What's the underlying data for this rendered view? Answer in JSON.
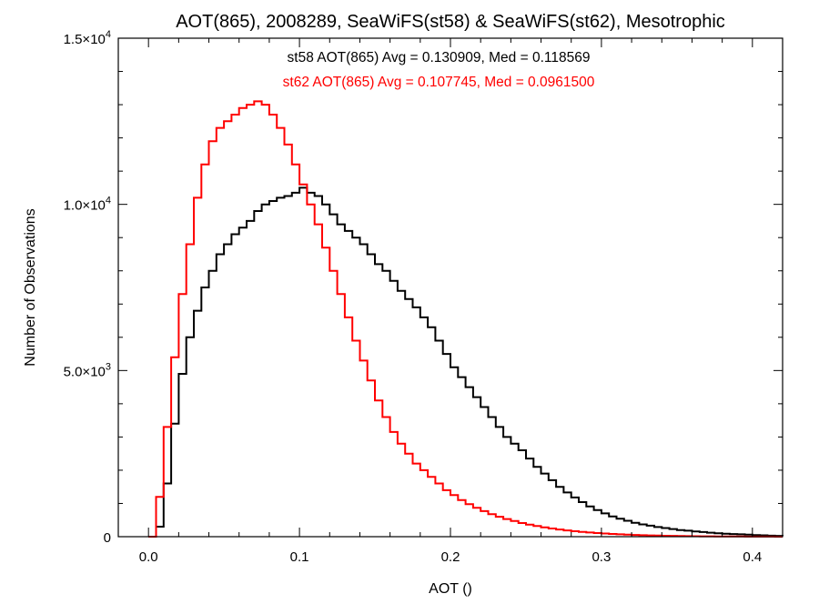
{
  "chart_data": {
    "type": "line",
    "step": true,
    "title": "AOT(865), 2008289, SeaWiFS(st58) & SeaWiFS(st62), Mesotrophic",
    "xlabel": "AOT ()",
    "ylabel": "Number of Observations",
    "xlim": [
      -0.02,
      0.42
    ],
    "ylim": [
      0,
      15000
    ],
    "grid": false,
    "x_ticks": [
      {
        "value": 0.0,
        "label": "0.0"
      },
      {
        "value": 0.1,
        "label": "0.1"
      },
      {
        "value": 0.2,
        "label": "0.2"
      },
      {
        "value": 0.3,
        "label": "0.3"
      },
      {
        "value": 0.4,
        "label": "0.4"
      }
    ],
    "y_ticks": [
      {
        "value": 0,
        "mantissa": "0",
        "exponent": ""
      },
      {
        "value": 5000,
        "mantissa": "5.0×10",
        "exponent": "3"
      },
      {
        "value": 10000,
        "mantissa": "1.0×10",
        "exponent": "4"
      },
      {
        "value": 15000,
        "mantissa": "1.5×10",
        "exponent": "4"
      }
    ],
    "annotations": [
      {
        "text": "st58 AOT(865) Avg = 0.130909, Med = 0.118569",
        "color": "#000000"
      },
      {
        "text": "st62 AOT(865) Avg = 0.107745, Med = 0.0961500",
        "color": "#ff0000"
      }
    ],
    "series": [
      {
        "color": "#000000",
        "x": [
          0.0,
          0.005,
          0.01,
          0.015,
          0.02,
          0.025,
          0.03,
          0.035,
          0.04,
          0.045,
          0.05,
          0.055,
          0.06,
          0.065,
          0.07,
          0.075,
          0.08,
          0.085,
          0.09,
          0.095,
          0.1,
          0.105,
          0.11,
          0.115,
          0.12,
          0.125,
          0.13,
          0.135,
          0.14,
          0.145,
          0.15,
          0.155,
          0.16,
          0.165,
          0.17,
          0.175,
          0.18,
          0.185,
          0.19,
          0.195,
          0.2,
          0.205,
          0.21,
          0.215,
          0.22,
          0.225,
          0.23,
          0.235,
          0.24,
          0.245,
          0.25,
          0.255,
          0.26,
          0.265,
          0.27,
          0.275,
          0.28,
          0.285,
          0.29,
          0.295,
          0.3,
          0.305,
          0.31,
          0.315,
          0.32,
          0.325,
          0.33,
          0.335,
          0.34,
          0.345,
          0.35,
          0.355,
          0.36,
          0.365,
          0.37,
          0.375,
          0.38,
          0.385,
          0.39,
          0.395,
          0.4,
          0.405,
          0.41,
          0.415,
          0.42
        ],
        "y": [
          0,
          300,
          1600,
          3400,
          4900,
          6000,
          6800,
          7500,
          8000,
          8500,
          8800,
          9100,
          9300,
          9500,
          9800,
          10000,
          10100,
          10200,
          10250,
          10350,
          10500,
          10350,
          10250,
          10000,
          9700,
          9400,
          9200,
          9000,
          8800,
          8500,
          8200,
          8000,
          7700,
          7400,
          7150,
          6900,
          6600,
          6300,
          5900,
          5500,
          5100,
          4800,
          4500,
          4200,
          3900,
          3600,
          3300,
          3000,
          2800,
          2600,
          2350,
          2100,
          1900,
          1700,
          1500,
          1330,
          1180,
          1040,
          910,
          800,
          700,
          610,
          540,
          480,
          420,
          370,
          330,
          290,
          260,
          230,
          200,
          180,
          160,
          140,
          120,
          100,
          90,
          80,
          70,
          60,
          50,
          40,
          30,
          25,
          20
        ]
      },
      {
        "color": "#ff0000",
        "x": [
          0.0,
          0.005,
          0.01,
          0.015,
          0.02,
          0.025,
          0.03,
          0.035,
          0.04,
          0.045,
          0.05,
          0.055,
          0.06,
          0.065,
          0.07,
          0.075,
          0.08,
          0.085,
          0.09,
          0.095,
          0.1,
          0.105,
          0.11,
          0.115,
          0.12,
          0.125,
          0.13,
          0.135,
          0.14,
          0.145,
          0.15,
          0.155,
          0.16,
          0.165,
          0.17,
          0.175,
          0.18,
          0.185,
          0.19,
          0.195,
          0.2,
          0.205,
          0.21,
          0.215,
          0.22,
          0.225,
          0.23,
          0.235,
          0.24,
          0.245,
          0.25,
          0.255,
          0.26,
          0.265,
          0.27,
          0.275,
          0.28,
          0.285,
          0.29,
          0.295,
          0.3,
          0.305,
          0.31,
          0.315,
          0.32,
          0.325,
          0.33,
          0.335,
          0.34,
          0.345,
          0.35,
          0.355,
          0.36,
          0.365,
          0.37,
          0.375,
          0.38,
          0.385,
          0.39,
          0.395,
          0.4,
          0.405,
          0.41,
          0.415,
          0.42
        ],
        "y": [
          0,
          1200,
          3300,
          5400,
          7300,
          8800,
          10200,
          11200,
          11900,
          12300,
          12500,
          12700,
          12900,
          13000,
          13100,
          13000,
          12700,
          12300,
          11800,
          11200,
          10600,
          10000,
          9400,
          8700,
          8000,
          7300,
          6600,
          5900,
          5300,
          4700,
          4100,
          3600,
          3150,
          2800,
          2500,
          2200,
          2000,
          1800,
          1600,
          1400,
          1250,
          1100,
          980,
          870,
          770,
          680,
          600,
          530,
          470,
          410,
          360,
          320,
          280,
          245,
          215,
          190,
          165,
          145,
          125,
          110,
          95,
          82,
          70,
          60,
          52,
          45,
          39,
          33,
          28,
          24,
          20,
          17,
          14,
          12,
          10,
          8,
          7,
          6,
          5,
          4,
          3,
          2,
          2,
          1,
          1
        ]
      }
    ]
  }
}
